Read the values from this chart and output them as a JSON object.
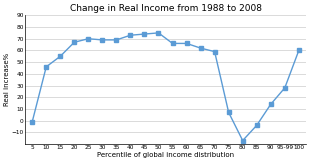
{
  "title": "Change in Real Income from 1988 to 2008",
  "xlabel": "Percentile of global income distribution",
  "ylabel": "Real increase%",
  "x_labels": [
    "5",
    "10",
    "15",
    "20",
    "25",
    "30",
    "35",
    "40",
    "45",
    "50",
    "55",
    "60",
    "65",
    "70",
    "75",
    "80",
    "85",
    "90",
    "95-99",
    "100"
  ],
  "x_values": [
    1,
    2,
    3,
    4,
    5,
    6,
    7,
    8,
    9,
    10,
    11,
    12,
    13,
    14,
    15,
    16,
    17,
    18,
    19,
    20
  ],
  "y_values": [
    -1,
    46,
    55,
    67,
    70,
    69,
    69,
    73,
    74,
    75,
    66,
    66,
    62,
    59,
    7,
    -17,
    -4,
    14,
    28,
    60
  ],
  "ylim": [
    -20,
    90
  ],
  "yticks": [
    -10,
    0,
    10,
    20,
    30,
    40,
    50,
    60,
    70,
    80,
    90
  ],
  "line_color": "#5b9bd5",
  "marker": "s",
  "marker_size": 2.5,
  "line_width": 1.0,
  "title_fontsize": 6.5,
  "axis_label_fontsize": 5.0,
  "tick_fontsize": 4.2,
  "background_color": "#ffffff",
  "grid_color": "#cccccc"
}
